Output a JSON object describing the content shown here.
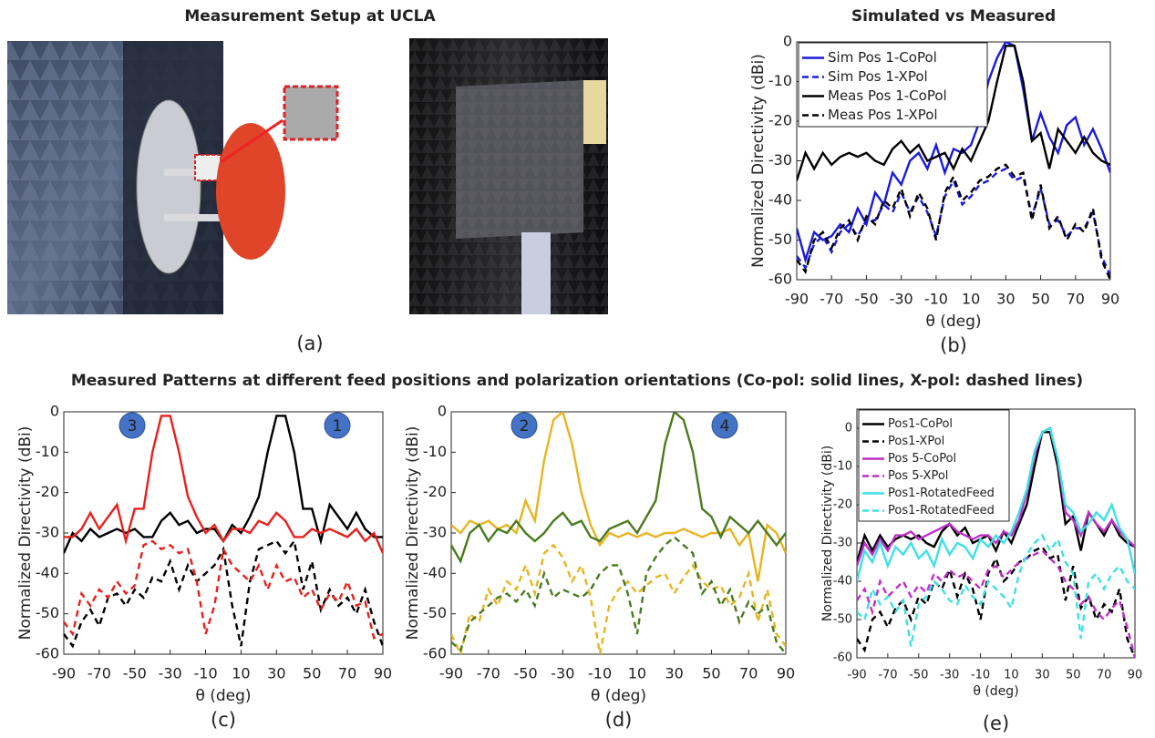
{
  "figure": {
    "setup_title": "Measurement Setup at UCLA",
    "setup_caption": "(a)",
    "patterns_title": "Measured Patterns at different feed positions and polarization orientations (Co-pol: solid lines, X-pol: dashed lines)"
  },
  "chart_data": [
    {
      "type": "line",
      "title": "Simulated vs Measured",
      "caption": "(b)",
      "xlabel": "θ (deg)",
      "ylabel": "Normalized Directivity (dBi)",
      "xlim": [
        -90,
        90
      ],
      "ylim": [
        -60,
        0
      ],
      "xticks": [
        -90,
        -70,
        -50,
        -30,
        -10,
        10,
        30,
        50,
        70,
        90
      ],
      "yticks": [
        -60,
        -50,
        -40,
        -30,
        -20,
        -10,
        0
      ],
      "grid": false,
      "legend": "upper left",
      "x": [
        -90,
        -85,
        -80,
        -75,
        -70,
        -65,
        -60,
        -55,
        -50,
        -45,
        -40,
        -35,
        -30,
        -25,
        -20,
        -15,
        -10,
        -5,
        0,
        5,
        10,
        15,
        20,
        25,
        30,
        35,
        40,
        45,
        50,
        55,
        60,
        65,
        70,
        75,
        80,
        85,
        90
      ],
      "series": [
        {
          "name": "Sim Pos 1-CoPol",
          "color": "#1a1adc",
          "dash": false,
          "values": [
            -47,
            -55,
            -48,
            -50,
            -49,
            -46,
            -48,
            -42,
            -46,
            -38,
            -41,
            -33,
            -36,
            -30,
            -28,
            -32,
            -26,
            -33,
            -27,
            -28,
            -26,
            -20,
            -10,
            -4,
            0,
            -1,
            -12,
            -25,
            -18,
            -24,
            -28,
            -21,
            -19,
            -26,
            -22,
            -27,
            -33
          ]
        },
        {
          "name": "Sim Pos 1-XPol",
          "color": "#1a1adc",
          "dash": true,
          "values": [
            -54,
            -57,
            -51,
            -49,
            -53,
            -48,
            -46,
            -49,
            -45,
            -45,
            -41,
            -43,
            -38,
            -43,
            -39,
            -43,
            -49,
            -39,
            -35,
            -41,
            -39,
            -36,
            -35,
            -33,
            -32,
            -35,
            -34,
            -44,
            -37,
            -46,
            -45,
            -49,
            -47,
            -47,
            -43,
            -54,
            -59
          ]
        },
        {
          "name": "Meas Pos 1-CoPol",
          "color": "#000000",
          "dash": false,
          "values": [
            -35,
            -28,
            -32,
            -28,
            -31,
            -29,
            -28,
            -29,
            -28,
            -30,
            -31,
            -27,
            -25,
            -28,
            -26,
            -30,
            -29,
            -28,
            -32,
            -27,
            -30,
            -25,
            -20,
            -10,
            -1,
            -1,
            -10,
            -25,
            -23,
            -32,
            -22,
            -25,
            -28,
            -24,
            -28,
            -30,
            -31
          ]
        },
        {
          "name": "Meas Pos 1-XPol",
          "color": "#000000",
          "dash": true,
          "values": [
            -55,
            -58,
            -50,
            -48,
            -52,
            -47,
            -45,
            -50,
            -44,
            -46,
            -40,
            -42,
            -37,
            -44,
            -38,
            -42,
            -50,
            -38,
            -34,
            -40,
            -38,
            -35,
            -34,
            -32,
            -31,
            -34,
            -33,
            -45,
            -36,
            -47,
            -44,
            -50,
            -46,
            -48,
            -42,
            -55,
            -60
          ]
        }
      ]
    },
    {
      "type": "line",
      "caption": "(c)",
      "xlabel": "θ (deg)",
      "ylabel": "Normalized Directivity (dBi)",
      "xlim": [
        -90,
        90
      ],
      "ylim": [
        -60,
        0
      ],
      "xticks": [
        -90,
        -70,
        -50,
        -30,
        -10,
        10,
        30,
        50,
        70,
        90
      ],
      "yticks": [
        -60,
        -50,
        -40,
        -30,
        -20,
        -10,
        0
      ],
      "grid": false,
      "annotations": [
        "3",
        "1"
      ],
      "x": [
        -90,
        -85,
        -80,
        -75,
        -70,
        -65,
        -60,
        -55,
        -50,
        -45,
        -40,
        -35,
        -30,
        -25,
        -20,
        -15,
        -10,
        -5,
        0,
        5,
        10,
        15,
        20,
        25,
        30,
        35,
        40,
        45,
        50,
        55,
        60,
        65,
        70,
        75,
        80,
        85,
        90
      ],
      "series": [
        {
          "color": "#000000",
          "dash": false,
          "values": [
            -35,
            -30,
            -32,
            -29,
            -31,
            -30,
            -29,
            -30,
            -29,
            -31,
            -31,
            -27,
            -25,
            -28,
            -27,
            -30,
            -29,
            -29,
            -32,
            -28,
            -30,
            -26,
            -21,
            -10,
            -1,
            -1,
            -10,
            -24,
            -24,
            -32,
            -23,
            -26,
            -29,
            -25,
            -29,
            -31,
            -31
          ]
        },
        {
          "color": "#000000",
          "dash": true,
          "values": [
            -55,
            -58,
            -52,
            -49,
            -53,
            -46,
            -45,
            -48,
            -44,
            -46,
            -41,
            -42,
            -37,
            -44,
            -38,
            -42,
            -40,
            -38,
            -34,
            -48,
            -58,
            -42,
            -34,
            -33,
            -32,
            -35,
            -32,
            -44,
            -37,
            -49,
            -44,
            -48,
            -46,
            -50,
            -44,
            -52,
            -58
          ]
        },
        {
          "color": "#e8201c",
          "dash": false,
          "values": [
            -31,
            -31,
            -29,
            -25,
            -29,
            -26,
            -23,
            -32,
            -24,
            -24,
            -10,
            -1,
            -1,
            -10,
            -21,
            -26,
            -30,
            -28,
            -32,
            -29,
            -29,
            -30,
            -27,
            -28,
            -25,
            -27,
            -31,
            -31,
            -29,
            -30,
            -29,
            -30,
            -31,
            -29,
            -32,
            -30,
            -35
          ]
        },
        {
          "color": "#e8201c",
          "dash": true,
          "values": [
            -52,
            -55,
            -45,
            -48,
            -44,
            -46,
            -42,
            -45,
            -43,
            -33,
            -32,
            -34,
            -33,
            -35,
            -34,
            -42,
            -55,
            -48,
            -34,
            -38,
            -40,
            -42,
            -38,
            -44,
            -38,
            -42,
            -41,
            -46,
            -44,
            -49,
            -45,
            -47,
            -42,
            -48,
            -47,
            -56,
            -55
          ]
        }
      ]
    },
    {
      "type": "line",
      "caption": "(d)",
      "xlabel": "θ (deg)",
      "ylabel": "Normalized Directivity (dBi)",
      "xlim": [
        -90,
        90
      ],
      "ylim": [
        -60,
        0
      ],
      "xticks": [
        -90,
        -70,
        -50,
        -30,
        -10,
        10,
        30,
        50,
        70,
        90
      ],
      "yticks": [
        -60,
        -50,
        -40,
        -30,
        -20,
        -10,
        0
      ],
      "grid": false,
      "annotations": [
        "2",
        "4"
      ],
      "x": [
        -90,
        -85,
        -80,
        -75,
        -70,
        -65,
        -60,
        -55,
        -50,
        -45,
        -40,
        -35,
        -30,
        -25,
        -20,
        -15,
        -10,
        -5,
        0,
        5,
        10,
        15,
        20,
        25,
        30,
        35,
        40,
        45,
        50,
        55,
        60,
        65,
        70,
        75,
        80,
        85,
        90
      ],
      "series": [
        {
          "color": "#e8b420",
          "dash": false,
          "values": [
            -28,
            -30,
            -27,
            -28,
            -27,
            -29,
            -28,
            -30,
            -22,
            -27,
            -12,
            -2,
            0,
            -8,
            -20,
            -28,
            -33,
            -30,
            -31,
            -30,
            -31,
            -30,
            -31,
            -30,
            -30,
            -29,
            -30,
            -31,
            -30,
            -30,
            -29,
            -33,
            -30,
            -42,
            -28,
            -30,
            -35
          ]
        },
        {
          "color": "#e8b420",
          "dash": true,
          "values": [
            -55,
            -60,
            -50,
            -52,
            -44,
            -48,
            -42,
            -44,
            -38,
            -45,
            -35,
            -33,
            -36,
            -42,
            -38,
            -46,
            -60,
            -48,
            -44,
            -42,
            -45,
            -43,
            -41,
            -40,
            -45,
            -41,
            -38,
            -42,
            -44,
            -43,
            -48,
            -46,
            -40,
            -52,
            -44,
            -55,
            -58
          ]
        },
        {
          "color": "#4a7a1e",
          "dash": false,
          "values": [
            -33,
            -37,
            -30,
            -28,
            -32,
            -29,
            -30,
            -27,
            -30,
            -32,
            -30,
            -27,
            -25,
            -28,
            -27,
            -31,
            -32,
            -29,
            -28,
            -27,
            -30,
            -26,
            -22,
            -8,
            0,
            -2,
            -10,
            -24,
            -26,
            -31,
            -26,
            -28,
            -30,
            -27,
            -30,
            -33,
            -30
          ]
        },
        {
          "color": "#4a7a1e",
          "dash": true,
          "values": [
            -57,
            -59,
            -52,
            -50,
            -48,
            -46,
            -45,
            -47,
            -44,
            -48,
            -40,
            -46,
            -44,
            -45,
            -46,
            -44,
            -40,
            -38,
            -38,
            -45,
            -55,
            -40,
            -36,
            -33,
            -31,
            -33,
            -35,
            -45,
            -42,
            -48,
            -44,
            -52,
            -47,
            -50,
            -48,
            -57,
            -60
          ]
        }
      ]
    },
    {
      "type": "line",
      "caption": "(e)",
      "xlabel": "θ (deg)",
      "ylabel": "Normalized Directivity (dBi)",
      "xlim": [
        -90,
        90
      ],
      "ylim": [
        -60,
        5
      ],
      "xticks": [
        -90,
        -70,
        -50,
        -30,
        -10,
        10,
        30,
        50,
        70,
        90
      ],
      "yticks": [
        -60,
        -50,
        -40,
        -30,
        -20,
        -10,
        0
      ],
      "grid": false,
      "legend": "upper left",
      "x": [
        -90,
        -85,
        -80,
        -75,
        -70,
        -65,
        -60,
        -55,
        -50,
        -45,
        -40,
        -35,
        -30,
        -25,
        -20,
        -15,
        -10,
        -5,
        0,
        5,
        10,
        15,
        20,
        25,
        30,
        35,
        40,
        45,
        50,
        55,
        60,
        65,
        70,
        75,
        80,
        85,
        90
      ],
      "series": [
        {
          "name": "Pos1-CoPol",
          "color": "#000000",
          "dash": false,
          "values": [
            -35,
            -28,
            -32,
            -28,
            -31,
            -29,
            -28,
            -29,
            -28,
            -30,
            -31,
            -27,
            -25,
            -28,
            -26,
            -30,
            -29,
            -28,
            -32,
            -27,
            -30,
            -25,
            -20,
            -10,
            -1,
            -1,
            -10,
            -25,
            -23,
            -32,
            -22,
            -25,
            -28,
            -24,
            -28,
            -30,
            -31
          ]
        },
        {
          "name": "Pos1-XPol",
          "color": "#000000",
          "dash": true,
          "values": [
            -55,
            -58,
            -50,
            -48,
            -52,
            -47,
            -45,
            -50,
            -44,
            -46,
            -40,
            -42,
            -37,
            -44,
            -38,
            -42,
            -50,
            -38,
            -34,
            -40,
            -38,
            -35,
            -34,
            -32,
            -31,
            -34,
            -33,
            -45,
            -36,
            -47,
            -44,
            -50,
            -46,
            -48,
            -42,
            -55,
            -60
          ]
        },
        {
          "name": "Pos 5-CoPol",
          "color": "#c02ec8",
          "dash": false,
          "values": [
            -36,
            -30,
            -33,
            -29,
            -32,
            -28,
            -28,
            -27,
            -29,
            -28,
            -27,
            -26,
            -25,
            -27,
            -28,
            -29,
            -28,
            -28,
            -30,
            -27,
            -28,
            -24,
            -17,
            -7,
            -1,
            0,
            -8,
            -22,
            -24,
            -28,
            -22,
            -25,
            -27,
            -24,
            -27,
            -29,
            -31
          ]
        },
        {
          "name": "Pos 5-XPol",
          "color": "#c02ec8",
          "dash": true,
          "values": [
            -45,
            -42,
            -48,
            -40,
            -44,
            -42,
            -40,
            -44,
            -41,
            -43,
            -38,
            -40,
            -37,
            -39,
            -38,
            -40,
            -42,
            -37,
            -36,
            -39,
            -37,
            -35,
            -34,
            -33,
            -32,
            -34,
            -36,
            -40,
            -42,
            -46,
            -44,
            -48,
            -50,
            -47,
            -45,
            -52,
            -60
          ]
        },
        {
          "name": "Pos1-RotatedFeed",
          "color": "#3ee0e6",
          "dash": false,
          "values": [
            -40,
            -32,
            -35,
            -30,
            -36,
            -31,
            -33,
            -30,
            -34,
            -32,
            -36,
            -29,
            -33,
            -30,
            -31,
            -34,
            -29,
            -31,
            -28,
            -30,
            -27,
            -22,
            -16,
            -6,
            -1,
            0,
            -8,
            -20,
            -22,
            -27,
            -25,
            -22,
            -24,
            -20,
            -26,
            -29,
            -38
          ]
        },
        {
          "name": "Pos1-RotatedFeed",
          "color": "#3ee0e6",
          "dash": true,
          "values": [
            -48,
            -50,
            -42,
            -46,
            -44,
            -48,
            -45,
            -57,
            -46,
            -44,
            -40,
            -42,
            -45,
            -46,
            -41,
            -44,
            -46,
            -40,
            -42,
            -44,
            -47,
            -38,
            -33,
            -30,
            -28,
            -32,
            -29,
            -35,
            -38,
            -55,
            -40,
            -38,
            -42,
            -38,
            -36,
            -40,
            -42
          ]
        }
      ]
    }
  ]
}
